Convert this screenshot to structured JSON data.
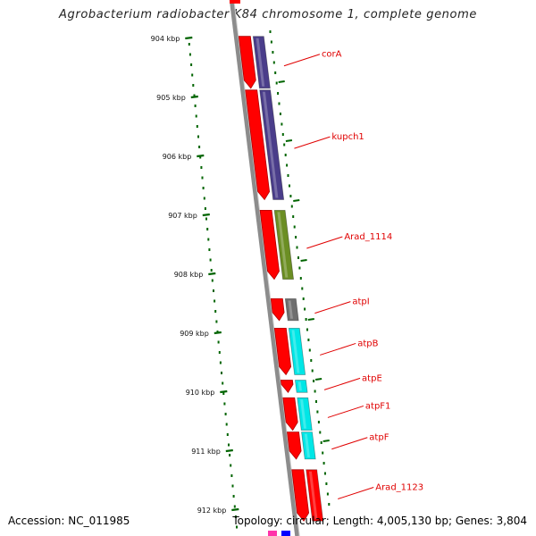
{
  "title": "Agrobacterium radiobacter K84 chromosome 1, complete genome",
  "accession_text": "Accession: NC_011985",
  "summary_text": "Topology: circular; Length: 4,005,130 bp; Genes: 3,804",
  "scale_ticks": [
    {
      "kbp": 904,
      "label": "904 kbp"
    },
    {
      "kbp": 905,
      "label": "905 kbp"
    },
    {
      "kbp": 906,
      "label": "906 kbp"
    },
    {
      "kbp": 907,
      "label": "907 kbp"
    },
    {
      "kbp": 908,
      "label": "908 kbp"
    },
    {
      "kbp": 909,
      "label": "909 kbp"
    },
    {
      "kbp": 910,
      "label": "910 kbp"
    },
    {
      "kbp": 911,
      "label": "911 kbp"
    },
    {
      "kbp": 912,
      "label": "912 kbp"
    }
  ],
  "genes": [
    {
      "label": "corA",
      "start_kbp": 903.95,
      "end_kbp": 904.86,
      "category_color": "#4a3d8a"
    },
    {
      "label": "kupch1",
      "start_kbp": 904.86,
      "end_kbp": 906.75,
      "category_color": "#4a3d8a"
    },
    {
      "label": "Arad_1114",
      "start_kbp": 906.9,
      "end_kbp": 908.1,
      "category_color": "#6b8e23"
    },
    {
      "label": "atpI",
      "start_kbp": 908.4,
      "end_kbp": 908.8,
      "category_color": "#6e6e6e"
    },
    {
      "label": "atpB",
      "start_kbp": 908.9,
      "end_kbp": 909.72,
      "category_color": "#00e6e6"
    },
    {
      "label": "atpE",
      "start_kbp": 909.78,
      "end_kbp": 910.02,
      "category_color": "#00e6e6"
    },
    {
      "label": "atpF1",
      "start_kbp": 910.08,
      "end_kbp": 910.66,
      "category_color": "#00e6e6"
    },
    {
      "label": "atpF",
      "start_kbp": 910.66,
      "end_kbp": 911.15,
      "category_color": "#00e6e6"
    },
    {
      "label": "Arad_1123",
      "start_kbp": 911.3,
      "end_kbp": 912.2,
      "category_color": "#ff0000"
    }
  ],
  "colors": {
    "cds_arrow": "#ff0000",
    "backbone": "#8c8c8c",
    "tick_mark": "#006400",
    "gc_dots": "#006400",
    "label_red": "#e00000"
  }
}
